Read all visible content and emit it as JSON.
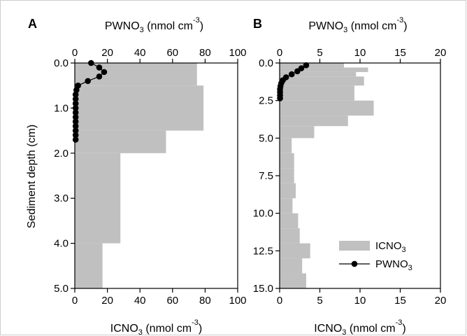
{
  "chart_data": [
    {
      "type": "bar",
      "panel_label": "A",
      "ylabel": "Sediment depth (cm)",
      "y_axis": {
        "range": [
          0,
          5
        ],
        "ticks": [
          "0.0",
          "1.0",
          "2.0",
          "3.0",
          "4.0",
          "5.0"
        ],
        "reversed": true
      },
      "bottom_axis": {
        "label_main": "ICNO",
        "label_sub": "3",
        "label_unit": " (nmol cm",
        "label_sup": "-3",
        "label_close": ")",
        "range": [
          0,
          100
        ],
        "ticks": [
          "0",
          "20",
          "40",
          "60",
          "80",
          "100"
        ]
      },
      "top_axis": {
        "label_main": "PWNO",
        "label_sub": "3",
        "label_unit": " (nmol cm",
        "label_sup": "-3",
        "label_close": ")",
        "range": [
          0,
          100
        ],
        "ticks": [
          "0",
          "20",
          "40",
          "60",
          "80",
          "100"
        ]
      },
      "series": [
        {
          "kind": "ICNO3",
          "bars": [
            {
              "top": 0.0,
              "bottom": 0.5,
              "value": 75
            },
            {
              "top": 0.5,
              "bottom": 1.5,
              "value": 79
            },
            {
              "top": 1.5,
              "bottom": 2.0,
              "value": 56
            },
            {
              "top": 2.0,
              "bottom": 4.0,
              "value": 28
            },
            {
              "top": 4.0,
              "bottom": 5.0,
              "value": 17
            }
          ]
        },
        {
          "kind": "PWNO3",
          "points": [
            {
              "x": 10,
              "y": 0.0
            },
            {
              "x": 15,
              "y": 0.1
            },
            {
              "x": 18,
              "y": 0.2
            },
            {
              "x": 15,
              "y": 0.3
            },
            {
              "x": 8,
              "y": 0.4
            },
            {
              "x": 2,
              "y": 0.5
            },
            {
              "x": 1,
              "y": 0.6
            },
            {
              "x": 0.5,
              "y": 0.7
            },
            {
              "x": 0.5,
              "y": 0.8
            },
            {
              "x": 0.5,
              "y": 0.9
            },
            {
              "x": 0.5,
              "y": 1.0
            },
            {
              "x": 0.5,
              "y": 1.1
            },
            {
              "x": 0.5,
              "y": 1.2
            },
            {
              "x": 0.5,
              "y": 1.3
            },
            {
              "x": 0.5,
              "y": 1.4
            },
            {
              "x": 0.5,
              "y": 1.5
            },
            {
              "x": 0.5,
              "y": 1.6
            },
            {
              "x": 0.5,
              "y": 1.7
            }
          ]
        }
      ]
    },
    {
      "type": "bar",
      "panel_label": "B",
      "y_axis": {
        "range": [
          0,
          15
        ],
        "ticks": [
          "0.0",
          "2.5",
          "5.0",
          "7.5",
          "10.0",
          "12.5",
          "15.0"
        ],
        "reversed": true
      },
      "bottom_axis": {
        "label_main": "ICNO",
        "label_sub": "3",
        "label_unit": " (nmol cm",
        "label_sup": "-3",
        "label_close": ")",
        "range": [
          0,
          20
        ],
        "ticks": [
          "0",
          "5",
          "10",
          "15",
          "20"
        ]
      },
      "top_axis": {
        "label_main": "PWNO",
        "label_sub": "3",
        "label_unit": " (nmol cm",
        "label_sup": "-3",
        "label_close": ")",
        "range": [
          0,
          20
        ],
        "ticks": [
          "0",
          "5",
          "10",
          "15",
          "20"
        ]
      },
      "series": [
        {
          "kind": "ICNO3",
          "bars": [
            {
              "top": 0.0,
              "bottom": 0.3,
              "value": 8
            },
            {
              "top": 0.3,
              "bottom": 0.6,
              "value": 11
            },
            {
              "top": 0.6,
              "bottom": 0.9,
              "value": 9.5
            },
            {
              "top": 0.9,
              "bottom": 1.5,
              "value": 10.5
            },
            {
              "top": 1.5,
              "bottom": 2.5,
              "value": 9.3
            },
            {
              "top": 2.5,
              "bottom": 3.5,
              "value": 11.7
            },
            {
              "top": 3.5,
              "bottom": 4.2,
              "value": 8.5
            },
            {
              "top": 4.2,
              "bottom": 5.0,
              "value": 4.3
            },
            {
              "top": 5.0,
              "bottom": 6.0,
              "value": 1.5
            },
            {
              "top": 6.0,
              "bottom": 7.0,
              "value": 1.8
            },
            {
              "top": 7.0,
              "bottom": 8.0,
              "value": 1.8
            },
            {
              "top": 8.0,
              "bottom": 9.0,
              "value": 2.0
            },
            {
              "top": 9.0,
              "bottom": 10.0,
              "value": 1.6
            },
            {
              "top": 10.0,
              "bottom": 11.0,
              "value": 2.3
            },
            {
              "top": 11.0,
              "bottom": 12.0,
              "value": 2.5
            },
            {
              "top": 12.0,
              "bottom": 13.0,
              "value": 3.8
            },
            {
              "top": 13.0,
              "bottom": 14.0,
              "value": 2.8
            },
            {
              "top": 14.0,
              "bottom": 15.0,
              "value": 3.3
            }
          ]
        },
        {
          "kind": "PWNO3",
          "points": [
            {
              "x": 3.3,
              "y": 0.15
            },
            {
              "x": 2.7,
              "y": 0.35
            },
            {
              "x": 2.2,
              "y": 0.55
            },
            {
              "x": 1.5,
              "y": 0.75
            },
            {
              "x": 0.8,
              "y": 0.95
            },
            {
              "x": 0.4,
              "y": 1.15
            },
            {
              "x": 0.2,
              "y": 1.35
            },
            {
              "x": 0.1,
              "y": 1.55
            },
            {
              "x": 0.05,
              "y": 1.75
            },
            {
              "x": 0.05,
              "y": 1.95
            },
            {
              "x": 0.05,
              "y": 2.15
            },
            {
              "x": 0.05,
              "y": 2.35
            }
          ]
        }
      ],
      "legend": {
        "placement": "bottom-right",
        "entries": [
          {
            "kind": "bar",
            "label_main": "ICNO",
            "label_sub": "3"
          },
          {
            "kind": "line-marker",
            "label_main": "PWNO",
            "label_sub": "3"
          }
        ]
      }
    }
  ],
  "colors": {
    "bar_fill": "#c0c0c0",
    "line": "#000000",
    "marker": "#000000",
    "axis": "#000000",
    "background": "#ffffff"
  }
}
